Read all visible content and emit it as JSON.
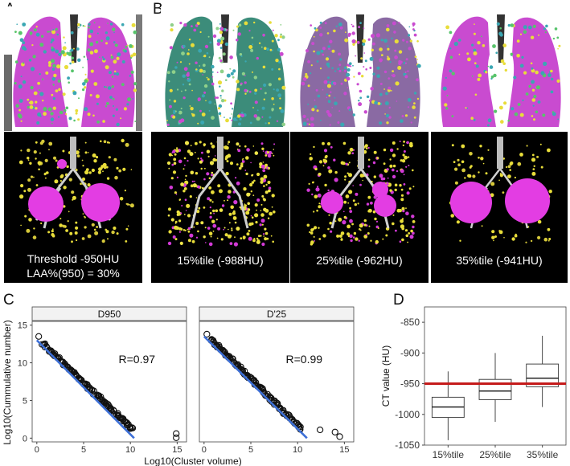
{
  "panels": {
    "A": {
      "letter": "A",
      "caption_line1": "Threshold -950HU",
      "caption_line2": "LAA%(950) = 30%"
    },
    "B": {
      "letter": "B",
      "captions": [
        "15%tile (-988HU)",
        "25%tile (-962HU)",
        "35%tile (-941HU)"
      ]
    },
    "C": {
      "letter": "C"
    },
    "D": {
      "letter": "D"
    }
  },
  "colors": {
    "emphysema_magenta": "#d23ad6",
    "cluster_yellow": "#e8dd3a",
    "cluster_cyan": "#3aa7b3",
    "fit_line_blue": "#3d6fd6",
    "threshold_red": "#c51b1b",
    "strip_background": "#f2f2f2"
  },
  "chart_data": [
    {
      "type": "scatter",
      "facets": [
        "D950",
        "D'25"
      ],
      "xlabel": "Log10(Cluster volume)",
      "ylabel": "Log10(Cummulative number)",
      "xlim": [
        -0.5,
        16
      ],
      "ylim": [
        -0.5,
        15.5
      ],
      "xticks": [
        0,
        5,
        10,
        15
      ],
      "yticks": [
        0,
        5,
        10,
        15
      ],
      "annotations": [
        "R=0.97",
        "R=0.99"
      ],
      "series": [
        {
          "facet": "D950",
          "outliers": [
            [
              0.2,
              13.5
            ],
            [
              14.9,
              0.6
            ],
            [
              14.9,
              0.05
            ]
          ],
          "dense_from": [
            0.6,
            12.6
          ],
          "dense_to": [
            10.2,
            1.2
          ],
          "fit_line": {
            "x": [
              0,
              10.4
            ],
            "y": [
              13.0,
              0.0
            ]
          }
        },
        {
          "facet": "D'25",
          "outliers": [
            [
              0.3,
              13.8
            ],
            [
              12.4,
              1.1
            ],
            [
              14.0,
              0.8
            ],
            [
              14.5,
              0.2
            ]
          ],
          "dense_from": [
            0.7,
            13.2
          ],
          "dense_to": [
            10.4,
            1.2
          ],
          "fit_line": {
            "x": [
              0,
              11.0
            ],
            "y": [
              13.5,
              0.0
            ]
          }
        }
      ]
    },
    {
      "type": "box",
      "categories": [
        "15%tile",
        "25%tile",
        "35%tile"
      ],
      "ylabel": "CT value (HU)",
      "ylim": [
        -1050,
        -825
      ],
      "yticks": [
        -850,
        -900,
        -950,
        -1000,
        -1050
      ],
      "reference_line": -950,
      "boxes": [
        {
          "whisker_low": -1042,
          "q1": -1005,
          "median": -988,
          "q3": -972,
          "whisker_high": -930
        },
        {
          "whisker_low": -1012,
          "q1": -976,
          "median": -962,
          "q3": -943,
          "whisker_high": -900
        },
        {
          "whisker_low": -988,
          "q1": -955,
          "median": -941,
          "q3": -918,
          "whisker_high": -872
        }
      ]
    }
  ]
}
